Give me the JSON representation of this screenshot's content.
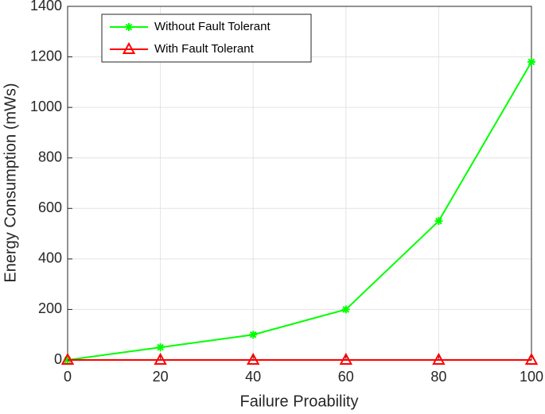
{
  "chart_data": {
    "type": "line",
    "x_label": "Failure Proability",
    "y_label": "Energy Consumption (mWs)",
    "x": [
      0,
      20,
      40,
      60,
      80,
      100
    ],
    "series": [
      {
        "name": "Without Fault Tolerant",
        "color": "#00ff00",
        "marker": "asterisk",
        "values": [
          0,
          50,
          100,
          200,
          550,
          1180
        ]
      },
      {
        "name": "With Fault Tolerant",
        "color": "#ff0000",
        "marker": "triangle",
        "values": [
          0,
          0,
          0,
          0,
          0,
          0
        ]
      }
    ],
    "xlim": [
      0,
      100
    ],
    "xticks": [
      0,
      20,
      40,
      60,
      80,
      100
    ],
    "ylim": [
      0,
      1400
    ],
    "yticks": [
      0,
      200,
      400,
      600,
      800,
      1000,
      1200,
      1400
    ],
    "grid": true,
    "legend_position": "upper-left"
  }
}
